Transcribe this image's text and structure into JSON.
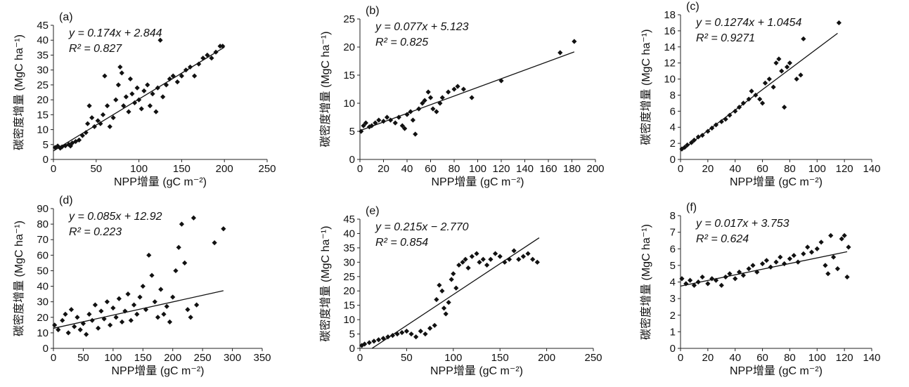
{
  "chart_data": [
    {
      "type": "scatter",
      "panel": "(a)",
      "xlabel": "NPP增量 (gC m⁻²)",
      "ylabel": "碳密度增量 (MgC ha⁻¹)",
      "xlim": [
        0,
        250
      ],
      "ylim": [
        0,
        45
      ],
      "xticks": [
        0,
        50,
        100,
        150,
        200,
        250
      ],
      "yticks": [
        0,
        5,
        10,
        15,
        20,
        25,
        30,
        35,
        40,
        45
      ],
      "equation": "y = 0.174x + 2.844",
      "r2": "R² = 0.827",
      "trendline": {
        "slope": 0.174,
        "intercept": 2.844,
        "x": [
          0,
          200
        ]
      },
      "points": [
        [
          2,
          4
        ],
        [
          5,
          4.5
        ],
        [
          8,
          3.8
        ],
        [
          10,
          4.2
        ],
        [
          14,
          4.6
        ],
        [
          18,
          5
        ],
        [
          20,
          4.5
        ],
        [
          22,
          5.5
        ],
        [
          26,
          6
        ],
        [
          30,
          6.5
        ],
        [
          34,
          8
        ],
        [
          38,
          9
        ],
        [
          40,
          12
        ],
        [
          42,
          18
        ],
        [
          45,
          14
        ],
        [
          48,
          11
        ],
        [
          52,
          13
        ],
        [
          55,
          12
        ],
        [
          58,
          15
        ],
        [
          60,
          28
        ],
        [
          63,
          18
        ],
        [
          66,
          11
        ],
        [
          70,
          14
        ],
        [
          73,
          20
        ],
        [
          76,
          25
        ],
        [
          78,
          31
        ],
        [
          80,
          29
        ],
        [
          82,
          18
        ],
        [
          85,
          21
        ],
        [
          88,
          16
        ],
        [
          90,
          27
        ],
        [
          92,
          22
        ],
        [
          95,
          19
        ],
        [
          98,
          24
        ],
        [
          100,
          20
        ],
        [
          103,
          17
        ],
        [
          106,
          23
        ],
        [
          110,
          25
        ],
        [
          113,
          18
        ],
        [
          116,
          22
        ],
        [
          120,
          16
        ],
        [
          122,
          24
        ],
        [
          125,
          40
        ],
        [
          128,
          21
        ],
        [
          132,
          25
        ],
        [
          136,
          27
        ],
        [
          140,
          28
        ],
        [
          145,
          26
        ],
        [
          150,
          28
        ],
        [
          155,
          30
        ],
        [
          160,
          31
        ],
        [
          165,
          28
        ],
        [
          170,
          32
        ],
        [
          175,
          34
        ],
        [
          180,
          35
        ],
        [
          185,
          34
        ],
        [
          190,
          36
        ],
        [
          195,
          38
        ],
        [
          198,
          38
        ]
      ]
    },
    {
      "type": "scatter",
      "panel": "(b)",
      "xlabel": "NPP增量 (gC m⁻²)",
      "ylabel": "碳密度增量 (MgC ha⁻¹)",
      "xlim": [
        0,
        200
      ],
      "ylim": [
        0,
        25
      ],
      "xticks": [
        0,
        20,
        40,
        60,
        80,
        100,
        120,
        140,
        160,
        180,
        200
      ],
      "yticks": [
        0,
        5,
        10,
        15,
        20,
        25
      ],
      "equation": "y = 0.077x + 5.123",
      "r2": "R² = 0.825",
      "trendline": {
        "slope": 0.077,
        "intercept": 5.123,
        "x": [
          0,
          182
        ]
      },
      "points": [
        [
          1,
          5
        ],
        [
          3,
          6
        ],
        [
          5,
          6.5
        ],
        [
          8,
          5.8
        ],
        [
          10,
          6
        ],
        [
          13,
          6.5
        ],
        [
          16,
          7
        ],
        [
          20,
          6.8
        ],
        [
          23,
          7.5
        ],
        [
          26,
          7
        ],
        [
          30,
          6.5
        ],
        [
          33,
          7.5
        ],
        [
          36,
          6
        ],
        [
          38,
          5.5
        ],
        [
          40,
          8
        ],
        [
          43,
          8.5
        ],
        [
          45,
          7
        ],
        [
          47,
          4.5
        ],
        [
          50,
          9
        ],
        [
          53,
          10
        ],
        [
          55,
          10.5
        ],
        [
          58,
          12
        ],
        [
          60,
          11
        ],
        [
          62,
          9
        ],
        [
          65,
          8.5
        ],
        [
          68,
          10
        ],
        [
          70,
          11
        ],
        [
          75,
          12
        ],
        [
          80,
          12.5
        ],
        [
          83,
          13
        ],
        [
          88,
          12.5
        ],
        [
          95,
          11
        ],
        [
          120,
          14
        ],
        [
          170,
          19
        ],
        [
          182,
          21
        ]
      ]
    },
    {
      "type": "scatter",
      "panel": "(c)",
      "xlabel": "NPP增量 (gC m⁻²)",
      "ylabel": "碳密度增量 (MgC ha⁻¹)",
      "xlim": [
        0,
        140
      ],
      "ylim": [
        0,
        18
      ],
      "xticks": [
        0,
        20,
        40,
        60,
        80,
        100,
        120,
        140
      ],
      "yticks": [
        0,
        2,
        4,
        6,
        8,
        10,
        12,
        14,
        16,
        18
      ],
      "equation": "y = 0.1274x + 1.0454",
      "r2": "R² = 0.9271",
      "trendline": {
        "slope": 0.1274,
        "intercept": 1.0454,
        "x": [
          0,
          115
        ]
      },
      "points": [
        [
          1,
          1.3
        ],
        [
          3,
          1.5
        ],
        [
          5,
          1.8
        ],
        [
          8,
          2.1
        ],
        [
          10,
          2.4
        ],
        [
          13,
          2.8
        ],
        [
          16,
          3
        ],
        [
          20,
          3.5
        ],
        [
          23,
          3.9
        ],
        [
          26,
          4.3
        ],
        [
          30,
          4.7
        ],
        [
          33,
          5
        ],
        [
          36,
          5.5
        ],
        [
          40,
          6
        ],
        [
          43,
          6.5
        ],
        [
          46,
          7
        ],
        [
          50,
          7.5
        ],
        [
          52,
          8.5
        ],
        [
          55,
          8
        ],
        [
          58,
          7.5
        ],
        [
          60,
          7
        ],
        [
          62,
          9.5
        ],
        [
          65,
          10
        ],
        [
          68,
          9
        ],
        [
          70,
          12
        ],
        [
          72,
          12.5
        ],
        [
          74,
          11
        ],
        [
          76,
          6.5
        ],
        [
          78,
          11.5
        ],
        [
          80,
          12
        ],
        [
          85,
          10
        ],
        [
          88,
          10.5
        ],
        [
          90,
          15
        ],
        [
          116,
          17
        ]
      ]
    },
    {
      "type": "scatter",
      "panel": "(d)",
      "xlabel": "NPP增量 (gC m⁻²)",
      "ylabel": "碳密度增量 (MgC ha⁻¹)",
      "xlim": [
        0,
        350
      ],
      "ylim": [
        0,
        90
      ],
      "xticks": [
        0,
        50,
        100,
        150,
        200,
        250,
        300,
        350
      ],
      "yticks": [
        0,
        10,
        20,
        30,
        40,
        50,
        60,
        70,
        80,
        90
      ],
      "equation": "y = 0.085x + 12.92",
      "r2": "R² = 0.223",
      "trendline": {
        "slope": 0.085,
        "intercept": 12.92,
        "x": [
          0,
          285
        ]
      },
      "points": [
        [
          2,
          15
        ],
        [
          8,
          12
        ],
        [
          15,
          18
        ],
        [
          20,
          22
        ],
        [
          25,
          10
        ],
        [
          30,
          25
        ],
        [
          35,
          14
        ],
        [
          40,
          20
        ],
        [
          45,
          12
        ],
        [
          50,
          16
        ],
        [
          55,
          9
        ],
        [
          60,
          22
        ],
        [
          65,
          18
        ],
        [
          70,
          28
        ],
        [
          75,
          13
        ],
        [
          80,
          24
        ],
        [
          85,
          19
        ],
        [
          90,
          30
        ],
        [
          95,
          15
        ],
        [
          100,
          26
        ],
        [
          105,
          20
        ],
        [
          110,
          32
        ],
        [
          115,
          17
        ],
        [
          120,
          24
        ],
        [
          125,
          35
        ],
        [
          130,
          18
        ],
        [
          135,
          28
        ],
        [
          140,
          22
        ],
        [
          145,
          33
        ],
        [
          150,
          40
        ],
        [
          155,
          25
        ],
        [
          160,
          60
        ],
        [
          165,
          47
        ],
        [
          170,
          30
        ],
        [
          175,
          20
        ],
        [
          180,
          38
        ],
        [
          185,
          22
        ],
        [
          190,
          27
        ],
        [
          195,
          17
        ],
        [
          200,
          33
        ],
        [
          205,
          50
        ],
        [
          210,
          65
        ],
        [
          215,
          80
        ],
        [
          220,
          55
        ],
        [
          225,
          25
        ],
        [
          230,
          20
        ],
        [
          235,
          84
        ],
        [
          240,
          28
        ],
        [
          270,
          68
        ],
        [
          285,
          77
        ]
      ]
    },
    {
      "type": "scatter",
      "panel": "(e)",
      "xlabel": "NPP增量 (gC m⁻²)",
      "ylabel": "碳密度增量 (MgC ha⁻¹)",
      "xlim": [
        0,
        250
      ],
      "ylim": [
        0,
        45
      ],
      "xticks": [
        0,
        50,
        100,
        150,
        200,
        250
      ],
      "yticks": [
        0,
        5,
        10,
        15,
        20,
        25,
        30,
        35,
        40,
        45
      ],
      "equation": "y = 0.215x − 2.770",
      "r2": "R² = 0.854",
      "trendline": {
        "slope": 0.215,
        "intercept": -2.77,
        "x": [
          13,
          192
        ]
      },
      "points": [
        [
          2,
          1
        ],
        [
          5,
          1.5
        ],
        [
          10,
          2
        ],
        [
          15,
          2.5
        ],
        [
          20,
          3
        ],
        [
          25,
          3.5
        ],
        [
          30,
          4
        ],
        [
          35,
          4.5
        ],
        [
          40,
          5
        ],
        [
          45,
          5.5
        ],
        [
          50,
          6
        ],
        [
          55,
          5
        ],
        [
          60,
          4
        ],
        [
          65,
          6
        ],
        [
          70,
          5
        ],
        [
          75,
          7
        ],
        [
          80,
          8
        ],
        [
          82,
          17
        ],
        [
          85,
          22
        ],
        [
          88,
          20
        ],
        [
          90,
          14
        ],
        [
          92,
          12
        ],
        [
          95,
          16
        ],
        [
          98,
          24
        ],
        [
          100,
          26
        ],
        [
          103,
          21
        ],
        [
          106,
          29
        ],
        [
          110,
          30
        ],
        [
          113,
          31
        ],
        [
          116,
          28
        ],
        [
          120,
          32
        ],
        [
          125,
          33
        ],
        [
          128,
          30
        ],
        [
          132,
          31
        ],
        [
          136,
          29
        ],
        [
          140,
          31
        ],
        [
          145,
          33
        ],
        [
          150,
          32
        ],
        [
          155,
          30
        ],
        [
          160,
          31
        ],
        [
          165,
          34
        ],
        [
          170,
          31
        ],
        [
          175,
          32
        ],
        [
          180,
          33
        ],
        [
          185,
          31
        ],
        [
          190,
          30
        ]
      ]
    },
    {
      "type": "scatter",
      "panel": "(f)",
      "xlabel": "NPP增量 (gC m⁻²)",
      "ylabel": "碳密度增量 (MgC ha⁻¹)",
      "xlim": [
        0,
        140
      ],
      "ylim": [
        0,
        8
      ],
      "xticks": [
        0,
        20,
        40,
        60,
        80,
        100,
        120,
        140
      ],
      "yticks": [
        0,
        1,
        2,
        3,
        4,
        5,
        6,
        7,
        8
      ],
      "equation": "y = 0.017x + 3.753",
      "r2": "R² = 0.624",
      "trendline": {
        "slope": 0.017,
        "intercept": 3.753,
        "x": [
          0,
          122
        ]
      },
      "points": [
        [
          1,
          4.2
        ],
        [
          4,
          3.9
        ],
        [
          7,
          4.1
        ],
        [
          10,
          3.8
        ],
        [
          13,
          4
        ],
        [
          16,
          4.3
        ],
        [
          20,
          3.9
        ],
        [
          23,
          4.2
        ],
        [
          26,
          4.1
        ],
        [
          30,
          3.8
        ],
        [
          33,
          4.3
        ],
        [
          36,
          4.5
        ],
        [
          40,
          4.2
        ],
        [
          43,
          4.6
        ],
        [
          46,
          4.4
        ],
        [
          50,
          4.8
        ],
        [
          53,
          5
        ],
        [
          56,
          4.6
        ],
        [
          60,
          5.1
        ],
        [
          63,
          5.3
        ],
        [
          66,
          4.9
        ],
        [
          70,
          5.2
        ],
        [
          73,
          5.5
        ],
        [
          76,
          5.1
        ],
        [
          80,
          5.4
        ],
        [
          83,
          5.6
        ],
        [
          86,
          5.2
        ],
        [
          90,
          5.7
        ],
        [
          93,
          6.1
        ],
        [
          96,
          5.8
        ],
        [
          100,
          6
        ],
        [
          103,
          6.4
        ],
        [
          106,
          5
        ],
        [
          108,
          4.5
        ],
        [
          110,
          6.8
        ],
        [
          112,
          5.5
        ],
        [
          115,
          4.8
        ],
        [
          118,
          6.6
        ],
        [
          120,
          6.8
        ],
        [
          122,
          4.3
        ],
        [
          123,
          6.1
        ]
      ]
    }
  ]
}
